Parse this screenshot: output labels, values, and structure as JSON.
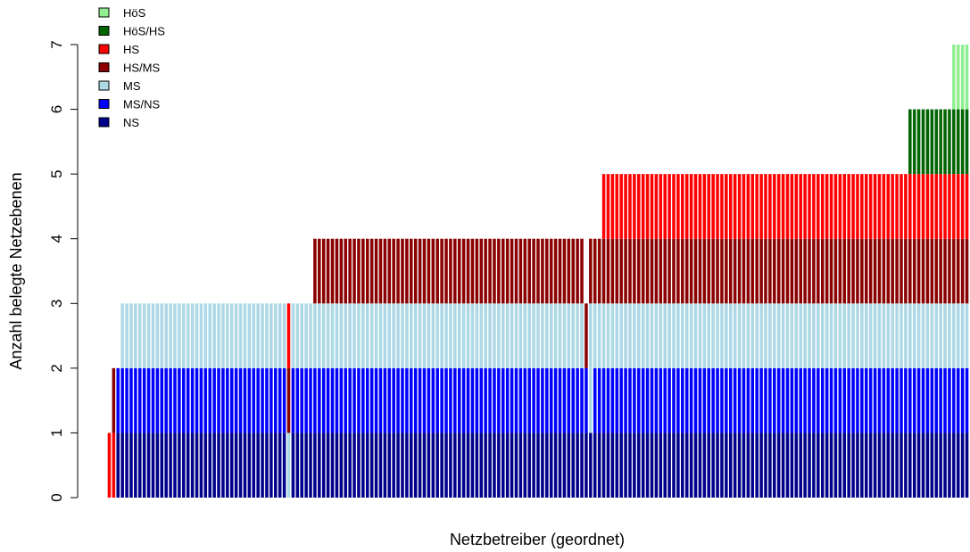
{
  "chart_data": {
    "type": "bar",
    "stacked": true,
    "xlabel": "Netzbetreiber (geordnet)",
    "ylabel": "Anzahl belegte Netzebenen",
    "ylim": [
      0,
      7
    ],
    "yticks": [
      0,
      1,
      2,
      3,
      4,
      5,
      6,
      7
    ],
    "legend_position": "top-left",
    "levels": [
      {
        "name": "HöS",
        "color": "#90ee90"
      },
      {
        "name": "HöS/HS",
        "color": "#006400"
      },
      {
        "name": "HS",
        "color": "#ff0000"
      },
      {
        "name": "HS/MS",
        "color": "#8b0000"
      },
      {
        "name": "MS",
        "color": "#add8e6"
      },
      {
        "name": "MS/NS",
        "color": "#0000ff"
      },
      {
        "name": "NS",
        "color": "#00008b"
      }
    ],
    "groups": [
      {
        "count": 1,
        "stack": [
          "HS"
        ]
      },
      {
        "count": 1,
        "stack": [
          "HS",
          "HS/MS"
        ]
      },
      {
        "count": 1,
        "stack": [
          "NS",
          "MS/NS"
        ]
      },
      {
        "count": 38,
        "stack": [
          "NS",
          "MS/NS",
          "MS"
        ]
      },
      {
        "count": 1,
        "stack": [
          "MS",
          "HS/MS",
          "HS"
        ]
      },
      {
        "count": 5,
        "stack": [
          "NS",
          "MS/NS",
          "MS"
        ]
      },
      {
        "count": 62,
        "stack": [
          "NS",
          "MS/NS",
          "MS",
          "HS/MS"
        ]
      },
      {
        "count": 1,
        "stack": [
          "NS",
          "MS/NS",
          "HS/MS"
        ]
      },
      {
        "count": 1,
        "stack": [
          "NS",
          "MS",
          "MS",
          "HS/MS"
        ]
      },
      {
        "count": 2,
        "stack": [
          "NS",
          "MS/NS",
          "MS",
          "HS/MS"
        ]
      },
      {
        "count": 70,
        "stack": [
          "NS",
          "MS/NS",
          "MS",
          "HS/MS",
          "HS"
        ]
      },
      {
        "count": 10,
        "stack": [
          "NS",
          "MS/NS",
          "MS",
          "HS/MS",
          "HS",
          "HöS/HS"
        ]
      },
      {
        "count": 4,
        "stack": [
          "NS",
          "MS/NS",
          "MS",
          "HS/MS",
          "HS",
          "HöS/HS",
          "HöS"
        ]
      }
    ]
  }
}
